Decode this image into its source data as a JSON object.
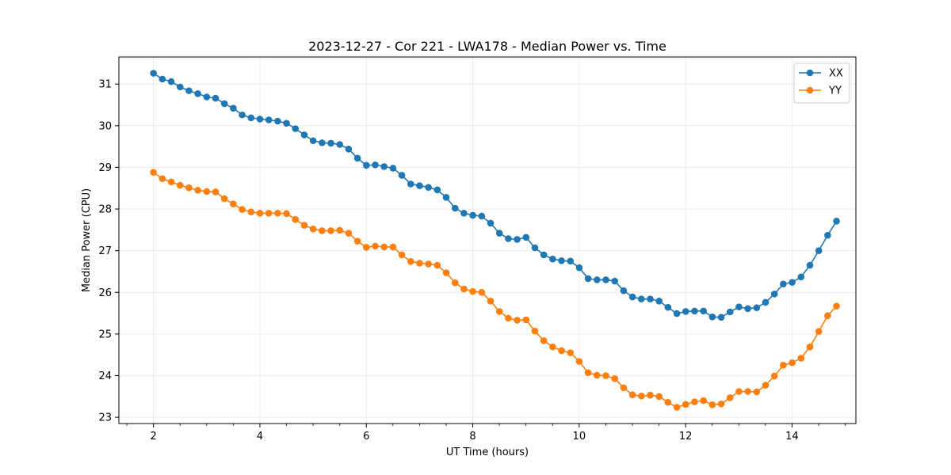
{
  "chart_data": {
    "type": "line",
    "title": "2023-12-27 - Cor 221 - LWA178 - Median Power vs. Time",
    "xlabel": "UT Time (hours)",
    "ylabel": "Median Power (CPU)",
    "xlim": [
      1.35,
      15.2
    ],
    "ylim": [
      22.85,
      31.65
    ],
    "xticks": [
      2,
      4,
      6,
      8,
      10,
      12,
      14
    ],
    "xtick_labels": [
      "2",
      "4",
      "6",
      "8",
      "10",
      "12",
      "14"
    ],
    "yticks": [
      23,
      24,
      25,
      26,
      27,
      28,
      29,
      30,
      31
    ],
    "ytick_labels": [
      "23",
      "24",
      "25",
      "26",
      "27",
      "28",
      "29",
      "30",
      "31"
    ],
    "grid": true,
    "legend_position": "top-right",
    "x_start": 2.0,
    "x_step": 0.1667,
    "series": [
      {
        "name": "XX",
        "color": "#1f77b4",
        "values": [
          31.26,
          31.12,
          31.06,
          30.93,
          30.84,
          30.77,
          30.69,
          30.66,
          30.53,
          30.42,
          30.26,
          30.19,
          30.16,
          30.14,
          30.11,
          30.06,
          29.93,
          29.78,
          29.64,
          29.59,
          29.58,
          29.55,
          29.44,
          29.22,
          29.05,
          29.06,
          29.02,
          28.98,
          28.81,
          28.6,
          28.56,
          28.52,
          28.46,
          28.28,
          28.02,
          27.9,
          27.85,
          27.83,
          27.66,
          27.42,
          27.29,
          27.27,
          27.32,
          27.07,
          26.9,
          26.8,
          26.76,
          26.75,
          26.59,
          26.33,
          26.3,
          26.3,
          26.27,
          26.04,
          25.89,
          25.84,
          25.84,
          25.79,
          25.64,
          25.49,
          25.54,
          25.55,
          25.55,
          25.41,
          25.4,
          25.53,
          25.65,
          25.61,
          25.63,
          25.76,
          25.96,
          26.2,
          26.24,
          26.37,
          26.65,
          27.0,
          27.37,
          27.71
        ]
      },
      {
        "name": "YY",
        "color": "#ff7f0e",
        "values": [
          28.88,
          28.73,
          28.65,
          28.57,
          28.51,
          28.45,
          28.42,
          28.41,
          28.25,
          28.12,
          27.99,
          27.93,
          27.9,
          27.9,
          27.9,
          27.89,
          27.75,
          27.61,
          27.52,
          27.48,
          27.48,
          27.49,
          27.42,
          27.23,
          27.08,
          27.11,
          27.09,
          27.09,
          26.9,
          26.74,
          26.7,
          26.68,
          26.65,
          26.47,
          26.23,
          26.08,
          26.02,
          26.0,
          25.79,
          25.54,
          25.38,
          25.33,
          25.34,
          25.07,
          24.84,
          24.69,
          24.6,
          24.55,
          24.34,
          24.07,
          24.01,
          24.0,
          23.93,
          23.71,
          23.54,
          23.51,
          23.53,
          23.5,
          23.36,
          23.24,
          23.31,
          23.37,
          23.4,
          23.3,
          23.32,
          23.47,
          23.62,
          23.62,
          23.61,
          23.77,
          23.99,
          24.25,
          24.31,
          24.42,
          24.69,
          25.06,
          25.44,
          25.67
        ]
      }
    ]
  }
}
